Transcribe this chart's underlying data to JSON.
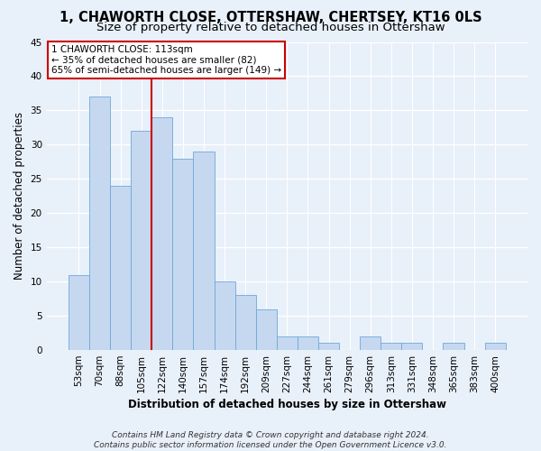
{
  "title": "1, CHAWORTH CLOSE, OTTERSHAW, CHERTSEY, KT16 0LS",
  "subtitle": "Size of property relative to detached houses in Ottershaw",
  "xlabel": "Distribution of detached houses by size in Ottershaw",
  "ylabel": "Number of detached properties",
  "bar_labels": [
    "53sqm",
    "70sqm",
    "88sqm",
    "105sqm",
    "122sqm",
    "140sqm",
    "157sqm",
    "174sqm",
    "192sqm",
    "209sqm",
    "227sqm",
    "244sqm",
    "261sqm",
    "279sqm",
    "296sqm",
    "313sqm",
    "331sqm",
    "348sqm",
    "365sqm",
    "383sqm",
    "400sqm"
  ],
  "bar_values": [
    11,
    37,
    24,
    32,
    34,
    28,
    29,
    10,
    8,
    6,
    2,
    2,
    1,
    0,
    2,
    1,
    1,
    0,
    1,
    0,
    1
  ],
  "bar_color": "#c5d8f0",
  "bar_edge_color": "#6fa8d8",
  "vline_color": "#cc0000",
  "annotation_text": "1 CHAWORTH CLOSE: 113sqm\n← 35% of detached houses are smaller (82)\n65% of semi-detached houses are larger (149) →",
  "annotation_box_color": "#ffffff",
  "annotation_box_edge": "#cc0000",
  "ylim": [
    0,
    45
  ],
  "yticks": [
    0,
    5,
    10,
    15,
    20,
    25,
    30,
    35,
    40,
    45
  ],
  "footer": "Contains HM Land Registry data © Crown copyright and database right 2024.\nContains public sector information licensed under the Open Government Licence v3.0.",
  "bg_color": "#e8f0fa",
  "grid_color": "#ffffff",
  "title_fontsize": 10.5,
  "subtitle_fontsize": 9.5,
  "axis_label_fontsize": 8.5,
  "tick_fontsize": 7.5,
  "footer_fontsize": 6.5,
  "vline_x": 3.47
}
